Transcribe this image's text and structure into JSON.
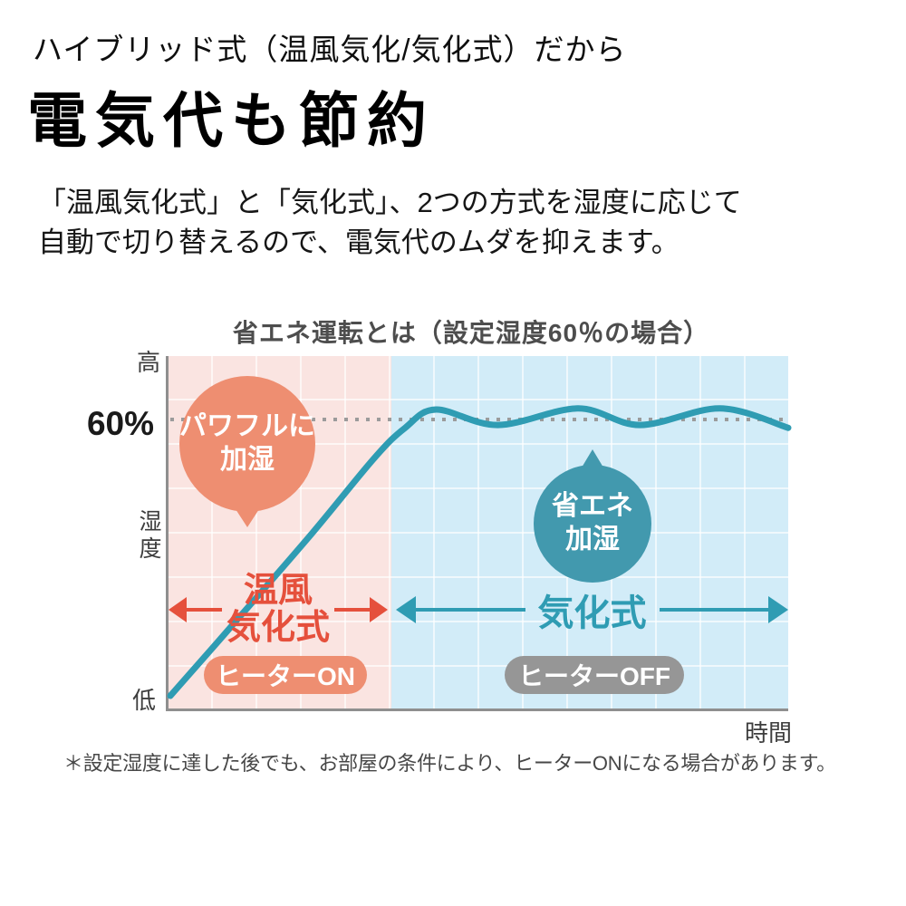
{
  "page": {
    "kicker": "ハイブリッド式（温風気化/気化式）だから",
    "title": "電気代も節約",
    "lede_line1": "「温風気化式」と「気化式」、2つの方式を湿度に応じて",
    "lede_line2": "自動で切り替えるので、電気代のムダを抑えます。",
    "footnote": "＊設定湿度に達した後でも、お部屋の条件により、ヒーターONになる場合があります。"
  },
  "chart": {
    "colors": {
      "curve": "#2f9cb3",
      "dotted": "#9b9b9b",
      "axis": "#8f8f8f",
      "warm-bg": "#fae4e1",
      "eco-bg": "#d2ecf8",
      "warm-accent": "#e5503c",
      "eco-accent": "#2f9cb3",
      "warm-badge": "#ee8e71",
      "eco-badge": "#969696",
      "warm-bubble": "#ee8e71",
      "eco-bubble": "#4299ae"
    }
  },
  "chart_data": {
    "type": "line",
    "title": "省エネ運転とは（設定湿度60％の場合）",
    "xlabel": "時間",
    "ylabel": "湿度",
    "y_axis_qualitative": {
      "top": "高",
      "bottom": "低"
    },
    "target_line": {
      "label": "60%",
      "value": 60,
      "style": "dotted"
    },
    "grid": true,
    "legend": "none",
    "series": [
      {
        "name": "湿度",
        "unit": "%",
        "x": [
          0,
          11,
          23,
          33,
          38,
          43,
          53,
          66,
          76,
          89,
          100
        ],
        "y": [
          10,
          24,
          39.5,
          53,
          58.5,
          61.8,
          59,
          62,
          59,
          62,
          58.5
        ]
      }
    ],
    "regions": [
      {
        "label_line1": "温風",
        "label_line2": "気化式",
        "x_start": 0,
        "x_end": 36,
        "badge": "ヒーターON",
        "bubble_line1": "パワフルに",
        "bubble_line2": "加湿"
      },
      {
        "label": "気化式",
        "x_start": 36,
        "x_end": 100,
        "badge": "ヒーターOFF",
        "bubble_line1": "省エネ",
        "bubble_line2": "加湿"
      }
    ]
  }
}
